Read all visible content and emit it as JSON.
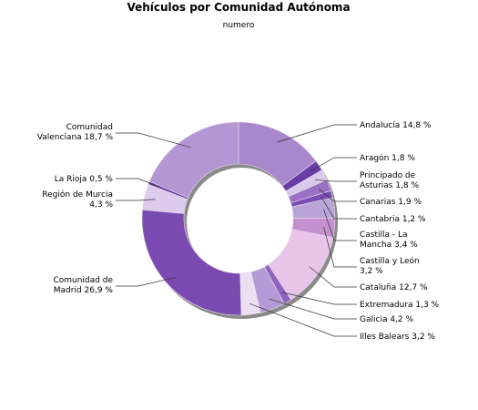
{
  "chart_data": {
    "type": "pie",
    "title": "Vehículos por Comunidad Autónoma",
    "subtitle": "numero",
    "slices": [
      {
        "label": "Andalucía",
        "value": 14.8,
        "text": "Andalucía 14,8 %",
        "color": "#a887cc"
      },
      {
        "label": "Aragón",
        "value": 1.8,
        "text": "Aragón 1,8 %",
        "color": "#6a3ca6"
      },
      {
        "label": "Principado de Asturias",
        "value": 1.8,
        "text": "Principado de Asturias 1,8 %",
        "color": "#d8c8ea"
      },
      {
        "label": "Canarias",
        "value": 1.9,
        "text": "Canarias 1,9 %",
        "color": "#9a70c4"
      },
      {
        "label": "Cantabria",
        "value": 1.2,
        "text": "Cantabria 1,2 %",
        "color": "#7a4cb4"
      },
      {
        "label": "Castilla - La Mancha",
        "value": 3.4,
        "text": "Castilla - La Mancha 3,4 %",
        "color": "#b9a4d8"
      },
      {
        "label": "Castilla y León",
        "value": 3.2,
        "text": "Castilla y León 3,2 %",
        "color": "#c590d0"
      },
      {
        "label": "Cataluña",
        "value": 12.7,
        "text": "Cataluña 12,7 %",
        "color": "#e8c4e8"
      },
      {
        "label": "Extremadura",
        "value": 1.3,
        "text": "Extremadura 1,3 %",
        "color": "#8e62be"
      },
      {
        "label": "Galicia",
        "value": 4.2,
        "text": "Galicia 4,2 %",
        "color": "#b49ad6"
      },
      {
        "label": "Illes Balears",
        "value": 3.2,
        "text": "Illes Balears 3,2 %",
        "color": "#ecdff2"
      },
      {
        "label": "Comunidad de Madrid",
        "value": 26.9,
        "text": "Comunidad de Madrid 26,9 %",
        "color": "#7a4ab0"
      },
      {
        "label": "Región de Murcia",
        "value": 4.3,
        "text": "Región de Murcia 4,3 %",
        "color": "#dccbec"
      },
      {
        "label": "La Rioja",
        "value": 0.5,
        "text": "La Rioja 0,5 %",
        "color": "#6a3ca6"
      },
      {
        "label": "Comunidad Valenciana",
        "value": 18.7,
        "text": "Comunidad Valenciana 18,7 %",
        "color": "#b496d4"
      }
    ]
  }
}
